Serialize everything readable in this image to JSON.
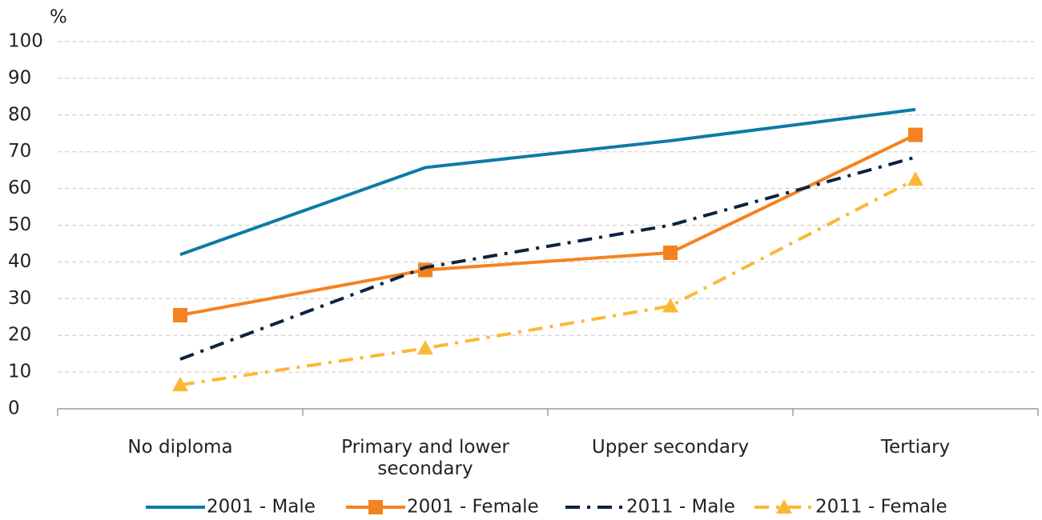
{
  "chart_data": {
    "type": "line",
    "y_label": "%",
    "categories": [
      "No diploma",
      "Primary and lower secondary",
      "Upper secondary",
      "Tertiary"
    ],
    "series": [
      {
        "name": "2001 - Male",
        "color": "#0e7aa6",
        "dash": "solid",
        "marker": "none",
        "values": [
          42,
          65.7,
          73,
          81.5
        ]
      },
      {
        "name": "2001 - Female",
        "color": "#f58220",
        "dash": "solid",
        "marker": "square",
        "values": [
          25.5,
          37.8,
          42.5,
          74.6
        ]
      },
      {
        "name": "2011 - Male",
        "color": "#0d2240",
        "dash": "dashdot",
        "marker": "none",
        "values": [
          13.5,
          38.5,
          50,
          68.5
        ]
      },
      {
        "name": "2011 - Female",
        "color": "#fbb836",
        "dash": "dashdot",
        "marker": "triangle",
        "values": [
          6.5,
          16.5,
          28,
          62.5
        ]
      }
    ],
    "ylim": [
      0,
      100
    ],
    "yticks": [
      0,
      10,
      20,
      30,
      40,
      50,
      60,
      70,
      80,
      90,
      100
    ],
    "grid": true,
    "legend": "bottom"
  }
}
